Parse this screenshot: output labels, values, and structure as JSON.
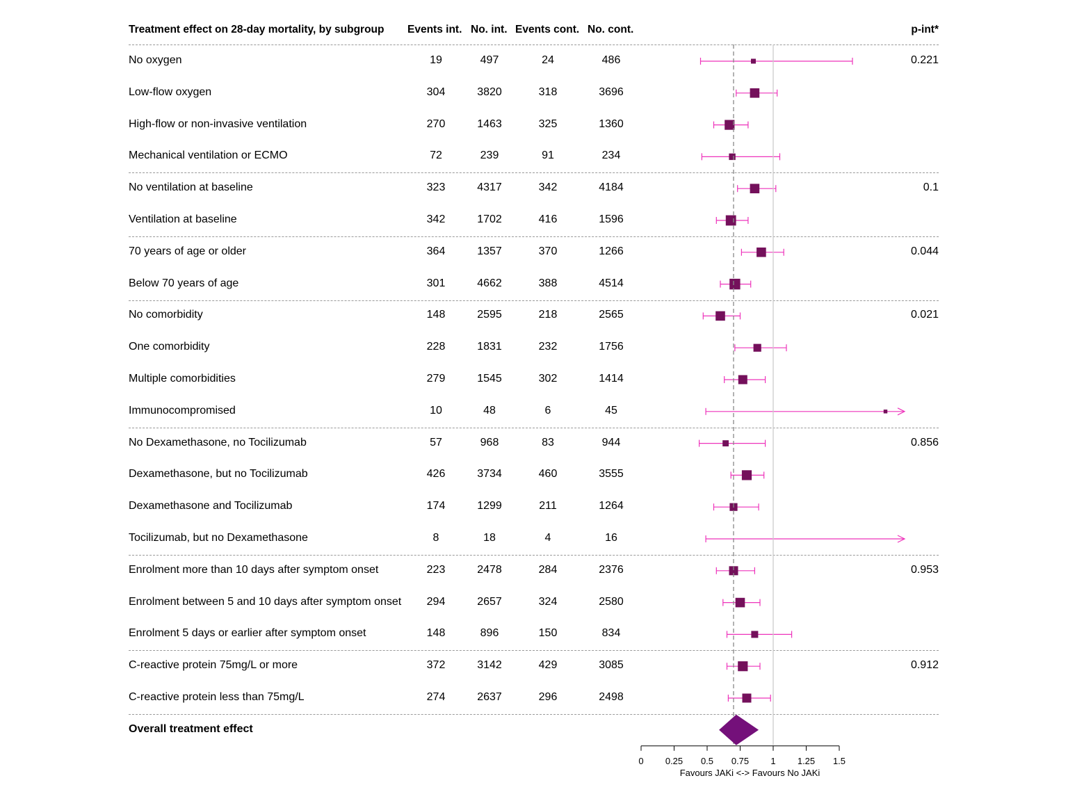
{
  "colors": {
    "box": "#74105b",
    "ci_line": "#ee33bb",
    "diamond": "#74107a",
    "ref_dashed": "#888888",
    "null_line": "#cccccc",
    "separator": "#9a9a9a"
  },
  "header": {
    "title": "Treatment effect on 28-day mortality, by subgroup",
    "events_int": "Events int.",
    "no_int": "No. int.",
    "events_cont": "Events cont.",
    "no_cont": "No. cont.",
    "p_int": "p-int*"
  },
  "chart_data": {
    "type": "forest",
    "xlim": [
      0,
      1.5
    ],
    "xticks": [
      0,
      0.25,
      0.5,
      0.75,
      1,
      1.25,
      1.5
    ],
    "xtick_labels": [
      "0",
      "0.25",
      "0.5",
      "0.75",
      "1",
      "1.25",
      "1.5"
    ],
    "xlabel": "Favours JAKi <-> Favours No JAKi",
    "reference_line": 0.7,
    "null_line": 1,
    "groups": [
      {
        "p_int": "0.221",
        "rows": [
          {
            "label": "No oxygen",
            "events_int": "19",
            "no_int": "497",
            "events_cont": "24",
            "no_cont": "486",
            "est": 0.85,
            "lo": 0.45,
            "hi": 1.6,
            "weight": 0.25
          },
          {
            "label": "Low-flow oxygen",
            "events_int": "304",
            "no_int": "3820",
            "events_cont": "318",
            "no_cont": "3696",
            "est": 0.86,
            "lo": 0.72,
            "hi": 1.03,
            "weight": 0.8
          },
          {
            "label": "High-flow or non-invasive ventilation",
            "events_int": "270",
            "no_int": "1463",
            "events_cont": "325",
            "no_cont": "1360",
            "est": 0.67,
            "lo": 0.55,
            "hi": 0.81,
            "weight": 0.85
          },
          {
            "label": "Mechanical ventilation or ECMO",
            "events_int": "72",
            "no_int": "239",
            "events_cont": "91",
            "no_cont": "234",
            "est": 0.69,
            "lo": 0.46,
            "hi": 1.05,
            "weight": 0.45
          }
        ]
      },
      {
        "p_int": "0.1",
        "rows": [
          {
            "label": "No ventilation at baseline",
            "events_int": "323",
            "no_int": "4317",
            "events_cont": "342",
            "no_cont": "4184",
            "est": 0.86,
            "lo": 0.73,
            "hi": 1.02,
            "weight": 0.8
          },
          {
            "label": "Ventilation at baseline",
            "events_int": "342",
            "no_int": "1702",
            "events_cont": "416",
            "no_cont": "1596",
            "est": 0.68,
            "lo": 0.57,
            "hi": 0.81,
            "weight": 0.9
          }
        ]
      },
      {
        "p_int": "0.044",
        "rows": [
          {
            "label": "70 years of age or older",
            "events_int": "364",
            "no_int": "1357",
            "events_cont": "370",
            "no_cont": "1266",
            "est": 0.91,
            "lo": 0.76,
            "hi": 1.08,
            "weight": 0.8
          },
          {
            "label": "Below 70 years of age",
            "events_int": "301",
            "no_int": "4662",
            "events_cont": "388",
            "no_cont": "4514",
            "est": 0.71,
            "lo": 0.6,
            "hi": 0.83,
            "weight": 0.95
          }
        ]
      },
      {
        "p_int": "0.021",
        "rows": [
          {
            "label": "No comorbidity",
            "events_int": "148",
            "no_int": "2595",
            "events_cont": "218",
            "no_cont": "2565",
            "est": 0.6,
            "lo": 0.47,
            "hi": 0.75,
            "weight": 0.8
          },
          {
            "label": "One comorbidity",
            "events_int": "228",
            "no_int": "1831",
            "events_cont": "232",
            "no_cont": "1756",
            "est": 0.88,
            "lo": 0.71,
            "hi": 1.1,
            "weight": 0.6
          },
          {
            "label": "Multiple comorbidities",
            "events_int": "279",
            "no_int": "1545",
            "events_cont": "302",
            "no_cont": "1414",
            "est": 0.77,
            "lo": 0.63,
            "hi": 0.94,
            "weight": 0.75
          },
          {
            "label": "Immunocompromised",
            "events_int": "10",
            "no_int": "48",
            "events_cont": "6",
            "no_cont": "45",
            "est": 1.85,
            "lo": 0.49,
            "hi": 5,
            "weight": 0.12,
            "arrow_right": true
          }
        ]
      },
      {
        "p_int": "0.856",
        "rows": [
          {
            "label": "No Dexamethasone, no Tocilizumab",
            "events_int": "57",
            "no_int": "968",
            "events_cont": "83",
            "no_cont": "944",
            "est": 0.64,
            "lo": 0.44,
            "hi": 0.94,
            "weight": 0.4
          },
          {
            "label": "Dexamethasone, but no Tocilizumab",
            "events_int": "426",
            "no_int": "3734",
            "events_cont": "460",
            "no_cont": "3555",
            "est": 0.8,
            "lo": 0.68,
            "hi": 0.93,
            "weight": 0.85
          },
          {
            "label": "Dexamethasone and Tocilizumab",
            "events_int": "174",
            "no_int": "1299",
            "events_cont": "211",
            "no_cont": "1264",
            "est": 0.7,
            "lo": 0.55,
            "hi": 0.89,
            "weight": 0.6
          },
          {
            "label": "Tocilizumab, but no Dexamethasone",
            "events_int": "8",
            "no_int": "18",
            "events_cont": "4",
            "no_cont": "16",
            "est": null,
            "lo": 0.49,
            "hi": 5,
            "weight": 0,
            "arrow_right": true
          }
        ]
      },
      {
        "p_int": "0.953",
        "rows": [
          {
            "label": "Enrolment more than 10 days after symptom onset",
            "events_int": "223",
            "no_int": "2478",
            "events_cont": "284",
            "no_cont": "2376",
            "est": 0.7,
            "lo": 0.57,
            "hi": 0.86,
            "weight": 0.75
          },
          {
            "label": "Enrolment between 5 and 10 days after symptom onset",
            "events_int": "294",
            "no_int": "2657",
            "events_cont": "324",
            "no_cont": "2580",
            "est": 0.75,
            "lo": 0.62,
            "hi": 0.9,
            "weight": 0.8
          },
          {
            "label": "Enrolment 5 days or earlier after symptom onset",
            "events_int": "148",
            "no_int": "896",
            "events_cont": "150",
            "no_cont": "834",
            "est": 0.86,
            "lo": 0.65,
            "hi": 1.14,
            "weight": 0.5
          }
        ]
      },
      {
        "p_int": "0.912",
        "rows": [
          {
            "label": "C-reactive protein 75mg/L or more",
            "events_int": "372",
            "no_int": "3142",
            "events_cont": "429",
            "no_cont": "3085",
            "est": 0.77,
            "lo": 0.65,
            "hi": 0.9,
            "weight": 0.85
          },
          {
            "label": "C-reactive protein less than 75mg/L",
            "events_int": "274",
            "no_int": "2637",
            "events_cont": "296",
            "no_cont": "2498",
            "est": 0.8,
            "lo": 0.66,
            "hi": 0.98,
            "weight": 0.75
          }
        ]
      }
    ],
    "overall": {
      "label": "Overall treatment effect",
      "est": 0.72,
      "lo": 0.59,
      "hi": 0.89
    }
  }
}
